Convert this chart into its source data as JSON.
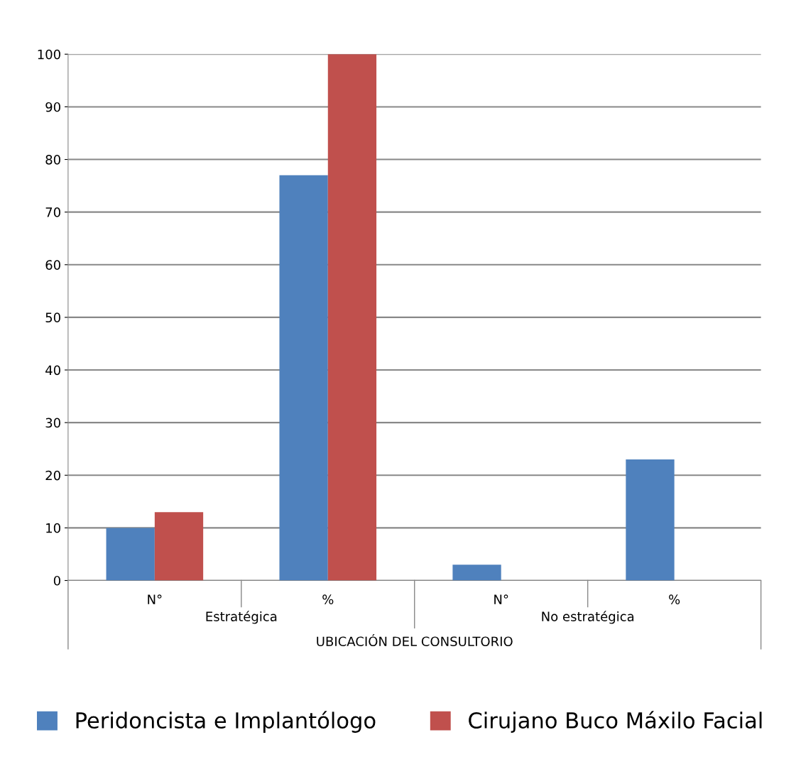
{
  "chart_data": {
    "type": "bar",
    "xlabel": "UBICACIÓN DEL CONSULTORIO",
    "categories": [
      "N°",
      "%",
      "N°",
      "%"
    ],
    "series": [
      {
        "name": "Peridoncista e Implantólogo",
        "color": "#4f81bd",
        "values": [
          10,
          77,
          3,
          23
        ]
      },
      {
        "name": "Cirujano Buco Máxilo Facial",
        "color": "#c0504d",
        "values": [
          13,
          100,
          0,
          0
        ]
      }
    ],
    "annotations": [
      "Estratégica",
      "No estratégica"
    ],
    "ylim": [
      0,
      100
    ],
    "yticks": [
      0,
      10,
      20,
      30,
      40,
      50,
      60,
      70,
      80,
      90,
      100
    ],
    "grid": "y",
    "legend": "bottom"
  }
}
